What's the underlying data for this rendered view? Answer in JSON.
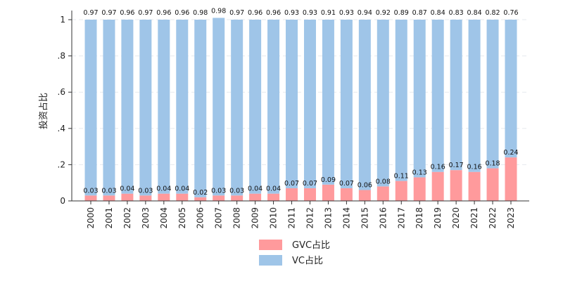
{
  "chart_data": {
    "type": "bar",
    "stacked": true,
    "title": "",
    "xlabel": "",
    "ylabel": "投资占比",
    "ylim": [
      0,
      1
    ],
    "yticks": [
      {
        "value": 0,
        "label": "0"
      },
      {
        "value": 0.2,
        "label": ".2"
      },
      {
        "value": 0.4,
        "label": ".4"
      },
      {
        "value": 0.6,
        "label": ".6"
      },
      {
        "value": 0.8,
        "label": ".8"
      },
      {
        "value": 1,
        "label": "1"
      }
    ],
    "grid": true,
    "legend_position": "bottom",
    "categories": [
      "2000",
      "2001",
      "2002",
      "2003",
      "2004",
      "2005",
      "2006",
      "2007",
      "2008",
      "2009",
      "2010",
      "2011",
      "2012",
      "2013",
      "2014",
      "2015",
      "2016",
      "2017",
      "2018",
      "2019",
      "2020",
      "2021",
      "2022",
      "2023"
    ],
    "series": [
      {
        "name": "GVC占比",
        "color": "#ff9a9c",
        "values": [
          0.03,
          0.03,
          0.04,
          0.03,
          0.04,
          0.04,
          0.02,
          0.03,
          0.03,
          0.04,
          0.04,
          0.07,
          0.07,
          0.09,
          0.07,
          0.06,
          0.08,
          0.11,
          0.13,
          0.16,
          0.17,
          0.16,
          0.18,
          0.24
        ],
        "labels": [
          "0.03",
          "0.03",
          "0.04",
          "0.03",
          "0.04",
          "0.04",
          "0.02",
          "0.03",
          "0.03",
          "0.04",
          "0.04",
          "0.07",
          "0.07",
          "0.09",
          "0.07",
          "0.06",
          "0.08",
          "0.11",
          "0.13",
          "0.16",
          "0.17",
          "0.16",
          "0.18",
          "0.24"
        ]
      },
      {
        "name": "VC占比",
        "color": "#9fc5e8",
        "values": [
          0.97,
          0.97,
          0.96,
          0.97,
          0.96,
          0.96,
          0.98,
          0.98,
          0.97,
          0.96,
          0.96,
          0.93,
          0.93,
          0.91,
          0.93,
          0.94,
          0.92,
          0.89,
          0.87,
          0.84,
          0.83,
          0.84,
          0.82,
          0.76
        ],
        "labels": [
          "0.97",
          "0.97",
          "0.96",
          "0.97",
          "0.96",
          "0.96",
          "0.98",
          "0.98",
          "0.97",
          "0.96",
          "0.96",
          "0.93",
          "0.93",
          "0.91",
          "0.93",
          "0.94",
          "0.92",
          "0.89",
          "0.87",
          "0.84",
          "0.83",
          "0.84",
          "0.82",
          "0.76"
        ]
      }
    ]
  }
}
